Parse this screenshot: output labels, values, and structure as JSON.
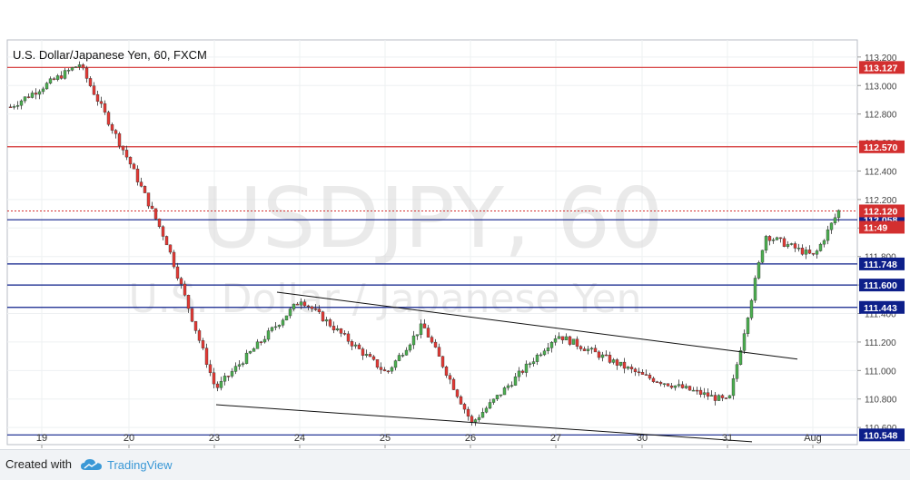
{
  "chart_data": {
    "type": "candlestick",
    "title": "U.S. Dollar/Japanese Yen, 60, FXCM",
    "watermark": {
      "symbol": "USDJPY, 60",
      "name": "U.S. Dollar / Japanese Yen"
    },
    "x_labels": [
      "19",
      "20",
      "23",
      "24",
      "25",
      "26",
      "27",
      "30",
      "31",
      "Aug"
    ],
    "y_ticks": [
      "113.200",
      "113.000",
      "112.800",
      "112.600",
      "112.400",
      "112.200",
      "112.000",
      "111.800",
      "111.600",
      "111.400",
      "111.200",
      "111.000",
      "110.800",
      "110.600"
    ],
    "ylim": [
      110.48,
      113.32
    ],
    "grid": true,
    "current": {
      "price": "112.120",
      "countdown": "11:49",
      "color": "#d32f2f"
    },
    "levels": [
      {
        "price": "113.127",
        "kind": "resistance",
        "color": "#d32f2f"
      },
      {
        "price": "112.570",
        "kind": "resistance",
        "color": "#d32f2f"
      },
      {
        "price": "112.058",
        "kind": "support",
        "color": "#0d1f8a"
      },
      {
        "price": "111.748",
        "kind": "support",
        "color": "#0d1f8a"
      },
      {
        "price": "111.600",
        "kind": "support",
        "color": "#0d1f8a"
      },
      {
        "price": "111.443",
        "kind": "support",
        "color": "#0d1f8a"
      },
      {
        "price": "110.548",
        "kind": "support",
        "color": "#0d1f8a"
      }
    ],
    "trendlines": [
      {
        "from": [
          "24",
          111.55
        ],
        "to": [
          "31",
          111.08
        ]
      },
      {
        "from": [
          "23",
          110.76
        ],
        "to": [
          "31",
          110.5
        ]
      }
    ],
    "key_prices": [
      {
        "x": "19",
        "price": 112.85
      },
      {
        "x": "19",
        "price": 113.15
      },
      {
        "x": "20",
        "price": 112.45
      },
      {
        "x": "20",
        "price": 111.9
      },
      {
        "x": "23",
        "price": 110.87
      },
      {
        "x": "24",
        "price": 111.5
      },
      {
        "x": "25",
        "price": 110.98
      },
      {
        "x": "25",
        "price": 111.32
      },
      {
        "x": "26",
        "price": 110.63
      },
      {
        "x": "27",
        "price": 111.25
      },
      {
        "x": "30",
        "price": 110.96
      },
      {
        "x": "31",
        "price": 110.78
      },
      {
        "x": "31",
        "price": 111.95
      },
      {
        "x": "Aug",
        "price": 111.8
      },
      {
        "x": "Aug",
        "price": 112.12
      }
    ],
    "colors": {
      "up": "#4caf50",
      "down": "#e53935"
    }
  },
  "footer": {
    "created_with": "Created with",
    "brand": "TradingView"
  }
}
